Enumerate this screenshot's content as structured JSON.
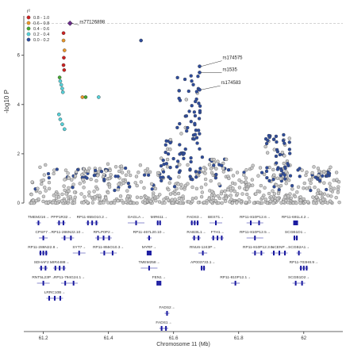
{
  "chart_data": {
    "type": "scatter",
    "xlabel": "Chromosome 11 (Mb)",
    "ylabel": "-log10 P",
    "xlim": [
      61.14,
      62.12
    ],
    "ylim": [
      0,
      7.6
    ],
    "x_ticks": [
      "61.2",
      "61.4",
      "61.6",
      "61.8",
      "62"
    ],
    "y_ticks": [
      "0",
      "2",
      "4",
      "6"
    ],
    "significance_line": 7.3,
    "grid": false,
    "legend": {
      "title": "r²",
      "position": "top-left",
      "entries": [
        {
          "label": "0.8 - 1.0",
          "color": "#cc2222"
        },
        {
          "label": "0.6 - 0.8",
          "color": "#e8962a"
        },
        {
          "label": "0.4 - 0.6",
          "color": "#44a832"
        },
        {
          "label": "0.2 - 0.4",
          "color": "#55d0d8"
        },
        {
          "label": "0.0 - 0.2",
          "color": "#2e4c9c"
        }
      ]
    },
    "annotations": [
      {
        "label": "rs77126898",
        "x": 61.28,
        "y": 7.3
      },
      {
        "label": "rs174575",
        "x": 61.68,
        "y": 5.55
      },
      {
        "label": "rs1535",
        "x": 61.68,
        "y": 5.3
      },
      {
        "label": "rs174583",
        "x": 61.68,
        "y": 4.6
      }
    ],
    "highlight_points": [
      {
        "x": 61.282,
        "y": 7.3,
        "r2_bin": "lead"
      },
      {
        "x": 61.262,
        "y": 6.9,
        "r2_bin": "0.8 - 1.0"
      },
      {
        "x": 61.262,
        "y": 6.6,
        "r2_bin": "0.6 - 0.8"
      },
      {
        "x": 61.265,
        "y": 6.2,
        "r2_bin": "0.6 - 0.8"
      },
      {
        "x": 61.263,
        "y": 5.9,
        "r2_bin": "0.8 - 1.0"
      },
      {
        "x": 61.262,
        "y": 5.6,
        "r2_bin": "0.8 - 1.0"
      },
      {
        "x": 61.264,
        "y": 5.4,
        "r2_bin": "0.8 - 1.0"
      },
      {
        "x": 61.25,
        "y": 5.1,
        "r2_bin": "0.4 - 0.6"
      },
      {
        "x": 61.252,
        "y": 4.95,
        "r2_bin": "0.2 - 0.4"
      },
      {
        "x": 61.255,
        "y": 4.8,
        "r2_bin": "0.2 - 0.4"
      },
      {
        "x": 61.258,
        "y": 4.65,
        "r2_bin": "0.2 - 0.4"
      },
      {
        "x": 61.26,
        "y": 4.5,
        "r2_bin": "0.2 - 0.4"
      },
      {
        "x": 61.32,
        "y": 4.3,
        "r2_bin": "0.6 - 0.8"
      },
      {
        "x": 61.33,
        "y": 4.3,
        "r2_bin": "0.4 - 0.6"
      },
      {
        "x": 61.37,
        "y": 4.3,
        "r2_bin": "0.2 - 0.4"
      },
      {
        "x": 61.248,
        "y": 3.6,
        "r2_bin": "0.2 - 0.4"
      },
      {
        "x": 61.252,
        "y": 3.4,
        "r2_bin": "0.2 - 0.4"
      },
      {
        "x": 61.258,
        "y": 3.2,
        "r2_bin": "0.2 - 0.4"
      },
      {
        "x": 61.265,
        "y": 3.0,
        "r2_bin": "0.2 - 0.4"
      },
      {
        "x": 61.5,
        "y": 6.6,
        "r2_bin": "0.0 - 0.2"
      },
      {
        "x": 61.68,
        "y": 5.55,
        "r2_bin": "0.0 - 0.2"
      },
      {
        "x": 61.68,
        "y": 5.3,
        "r2_bin": "0.0 - 0.2"
      },
      {
        "x": 61.68,
        "y": 4.6,
        "r2_bin": "0.0 - 0.2"
      }
    ],
    "gene_track": {
      "genes": [
        {
          "name": "TMEM216",
          "x": 61.185,
          "row": 0
        },
        {
          "name": "PPP1R32",
          "x": 61.255,
          "row": 0
        },
        {
          "name": "RP11-855O10.2",
          "x": 61.35,
          "row": 0
        },
        {
          "name": "DAGLA",
          "x": 61.485,
          "row": 0
        },
        {
          "name": "MIR611",
          "x": 61.555,
          "row": 0
        },
        {
          "name": "FADS3",
          "x": 61.665,
          "row": 0
        },
        {
          "name": "BEST1",
          "x": 61.73,
          "row": 0
        },
        {
          "name": "RP11-810P12.6",
          "x": 61.85,
          "row": 0
        },
        {
          "name": "RP11-691L4.2",
          "x": 61.975,
          "row": 0
        },
        {
          "name": "CPSF7",
          "x": 61.2,
          "row": 1
        },
        {
          "name": "RP11-286N22.10",
          "x": 61.275,
          "row": 1
        },
        {
          "name": "RPLP0P2",
          "x": 61.385,
          "row": 1
        },
        {
          "name": "RP11-467L20.10",
          "x": 61.525,
          "row": 1
        },
        {
          "name": "RAB3IL1",
          "x": 61.67,
          "row": 1
        },
        {
          "name": "FTH1",
          "x": 61.735,
          "row": 1
        },
        {
          "name": "RP11-810P12.5",
          "x": 61.85,
          "row": 1
        },
        {
          "name": "SCGB1D1",
          "x": 61.975,
          "row": 1
        },
        {
          "name": "RP11-286N22.8",
          "x": 61.2,
          "row": 2
        },
        {
          "name": "SYT7",
          "x": 61.31,
          "row": 2
        },
        {
          "name": "RP11-855O10.3",
          "x": 61.4,
          "row": 2
        },
        {
          "name": "MYRF",
          "x": 61.525,
          "row": 2
        },
        {
          "name": "RNU6-1243P",
          "x": 61.69,
          "row": 2
        },
        {
          "name": "RP11-810P12.3",
          "x": 61.86,
          "row": 2
        },
        {
          "name": "INCENP",
          "x": 61.925,
          "row": 2
        },
        {
          "name": "SCGB2A1",
          "x": 61.985,
          "row": 2
        },
        {
          "name": "SDHAF2",
          "x": 61.2,
          "row": 3
        },
        {
          "name": "MIR4488",
          "x": 61.25,
          "row": 3
        },
        {
          "name": "TMEM258",
          "x": 61.525,
          "row": 3
        },
        {
          "name": "AP003733.1",
          "x": 61.69,
          "row": 3
        },
        {
          "name": "RP11-703H8.9",
          "x": 62.0,
          "row": 3
        },
        {
          "name": "RNT5L23P",
          "x": 61.2,
          "row": 4
        },
        {
          "name": "RP11-794G24.1",
          "x": 61.28,
          "row": 4
        },
        {
          "name": "FEN1",
          "x": 61.555,
          "row": 4
        },
        {
          "name": "RP11-810P12.1",
          "x": 61.79,
          "row": 4
        },
        {
          "name": "SCGB1D2",
          "x": 61.985,
          "row": 4
        },
        {
          "name": "LRRC10B",
          "x": 61.235,
          "row": 5
        },
        {
          "name": "FADS2",
          "x": 61.58,
          "row": 6
        },
        {
          "name": "FADS1",
          "x": 61.57,
          "row": 7
        }
      ]
    }
  }
}
